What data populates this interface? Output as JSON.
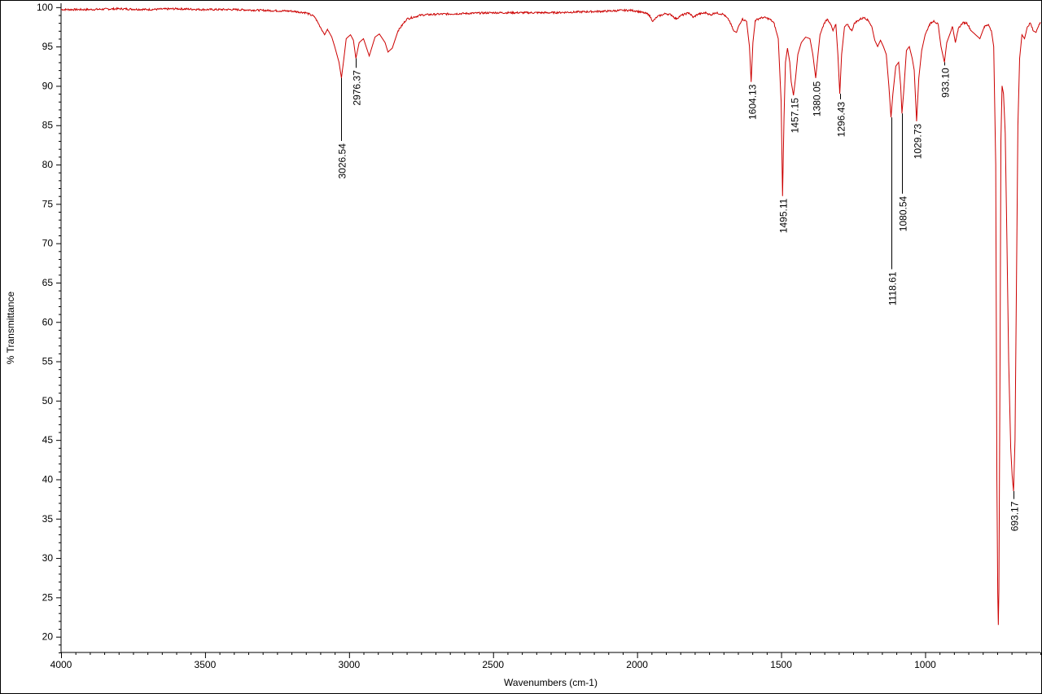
{
  "chart_data": {
    "type": "line",
    "xlabel": "Wavenumbers (cm-1)",
    "ylabel": "% Transmittance",
    "xlim": [
      4000,
      600
    ],
    "ylim": [
      18,
      100.5
    ],
    "x_ticks": [
      4000,
      3500,
      3000,
      2500,
      2000,
      1500,
      1000
    ],
    "y_ticks": [
      20,
      25,
      30,
      35,
      40,
      45,
      50,
      55,
      60,
      65,
      70,
      75,
      80,
      85,
      90,
      95,
      100
    ],
    "line_color": "#cc0000",
    "grid": false,
    "series": [
      {
        "points": [
          [
            4000,
            99.7
          ],
          [
            3900,
            99.7
          ],
          [
            3800,
            99.8
          ],
          [
            3700,
            99.7
          ],
          [
            3600,
            99.8
          ],
          [
            3500,
            99.7
          ],
          [
            3400,
            99.7
          ],
          [
            3300,
            99.6
          ],
          [
            3200,
            99.5
          ],
          [
            3150,
            99.3
          ],
          [
            3120,
            98.8
          ],
          [
            3100,
            97.5
          ],
          [
            3085,
            96.5
          ],
          [
            3075,
            97.2
          ],
          [
            3060,
            96.2
          ],
          [
            3050,
            95.0
          ],
          [
            3035,
            93.0
          ],
          [
            3026.54,
            91.0
          ],
          [
            3018,
            93.5
          ],
          [
            3010,
            96.0
          ],
          [
            2995,
            96.5
          ],
          [
            2985,
            95.8
          ],
          [
            2976.37,
            93.5
          ],
          [
            2965,
            95.5
          ],
          [
            2950,
            96.0
          ],
          [
            2930,
            93.8
          ],
          [
            2910,
            96.2
          ],
          [
            2895,
            96.6
          ],
          [
            2875,
            95.5
          ],
          [
            2865,
            94.3
          ],
          [
            2850,
            94.8
          ],
          [
            2830,
            97.0
          ],
          [
            2800,
            98.5
          ],
          [
            2750,
            99.0
          ],
          [
            2700,
            99.1
          ],
          [
            2600,
            99.2
          ],
          [
            2500,
            99.3
          ],
          [
            2400,
            99.3
          ],
          [
            2300,
            99.3
          ],
          [
            2200,
            99.4
          ],
          [
            2100,
            99.5
          ],
          [
            2050,
            99.6
          ],
          [
            2020,
            99.6
          ],
          [
            2000,
            99.5
          ],
          [
            1960,
            99.1
          ],
          [
            1945,
            98.2
          ],
          [
            1930,
            98.8
          ],
          [
            1900,
            99.2
          ],
          [
            1880,
            99.0
          ],
          [
            1865,
            98.5
          ],
          [
            1850,
            98.9
          ],
          [
            1820,
            99.3
          ],
          [
            1805,
            98.7
          ],
          [
            1790,
            99.1
          ],
          [
            1760,
            99.3
          ],
          [
            1745,
            99.0
          ],
          [
            1730,
            99.3
          ],
          [
            1700,
            99.1
          ],
          [
            1680,
            98.3
          ],
          [
            1665,
            97.0
          ],
          [
            1655,
            96.8
          ],
          [
            1645,
            97.8
          ],
          [
            1635,
            98.5
          ],
          [
            1620,
            98.2
          ],
          [
            1610,
            95.0
          ],
          [
            1604.13,
            90.5
          ],
          [
            1598,
            95.5
          ],
          [
            1590,
            98.3
          ],
          [
            1575,
            98.6
          ],
          [
            1560,
            98.7
          ],
          [
            1540,
            98.5
          ],
          [
            1525,
            98.0
          ],
          [
            1510,
            96.0
          ],
          [
            1500,
            88.0
          ],
          [
            1495.11,
            76.0
          ],
          [
            1490,
            86.0
          ],
          [
            1485,
            93.0
          ],
          [
            1478,
            94.8
          ],
          [
            1470,
            93.0
          ],
          [
            1465,
            90.5
          ],
          [
            1457.15,
            88.8
          ],
          [
            1450,
            91.0
          ],
          [
            1442,
            94.0
          ],
          [
            1430,
            95.5
          ],
          [
            1415,
            96.2
          ],
          [
            1400,
            96.0
          ],
          [
            1390,
            94.0
          ],
          [
            1380.05,
            91.0
          ],
          [
            1372,
            94.0
          ],
          [
            1365,
            96.5
          ],
          [
            1350,
            98.0
          ],
          [
            1340,
            98.5
          ],
          [
            1330,
            98.0
          ],
          [
            1320,
            97.0
          ],
          [
            1310,
            97.8
          ],
          [
            1303,
            94.0
          ],
          [
            1296.43,
            89.0
          ],
          [
            1290,
            94.0
          ],
          [
            1280,
            97.5
          ],
          [
            1270,
            97.8
          ],
          [
            1255,
            97.0
          ],
          [
            1245,
            98.0
          ],
          [
            1225,
            98.5
          ],
          [
            1210,
            98.7
          ],
          [
            1195,
            98.2
          ],
          [
            1185,
            97.5
          ],
          [
            1175,
            95.8
          ],
          [
            1165,
            95.0
          ],
          [
            1155,
            95.8
          ],
          [
            1145,
            95.0
          ],
          [
            1135,
            94.0
          ],
          [
            1126,
            90.0
          ],
          [
            1118.61,
            86.0
          ],
          [
            1112,
            89.0
          ],
          [
            1102,
            92.5
          ],
          [
            1092,
            93.0
          ],
          [
            1085,
            90.0
          ],
          [
            1080.54,
            86.5
          ],
          [
            1075,
            89.0
          ],
          [
            1065,
            94.5
          ],
          [
            1055,
            95.0
          ],
          [
            1045,
            93.5
          ],
          [
            1038,
            92.0
          ],
          [
            1029.73,
            85.5
          ],
          [
            1022,
            91.0
          ],
          [
            1012,
            94.5
          ],
          [
            1000,
            96.5
          ],
          [
            985,
            97.8
          ],
          [
            970,
            98.3
          ],
          [
            955,
            97.8
          ],
          [
            945,
            95.0
          ],
          [
            933.1,
            93.0
          ],
          [
            925,
            95.5
          ],
          [
            915,
            96.5
          ],
          [
            905,
            97.5
          ],
          [
            895,
            95.5
          ],
          [
            885,
            97.3
          ],
          [
            870,
            98.0
          ],
          [
            855,
            98.0
          ],
          [
            840,
            97.0
          ],
          [
            825,
            96.5
          ],
          [
            810,
            96.0
          ],
          [
            795,
            97.5
          ],
          [
            780,
            97.8
          ],
          [
            770,
            97.0
          ],
          [
            762,
            95.0
          ],
          [
            755,
            80.0
          ],
          [
            751,
            40.0
          ],
          [
            748,
            25.5
          ],
          [
            746,
            21.5
          ],
          [
            744,
            26.0
          ],
          [
            740,
            55.0
          ],
          [
            737,
            83.0
          ],
          [
            733,
            90.0
          ],
          [
            728,
            89.0
          ],
          [
            722,
            84.0
          ],
          [
            716,
            70.0
          ],
          [
            710,
            55.0
          ],
          [
            703,
            44.0
          ],
          [
            698,
            40.5
          ],
          [
            693.17,
            38.5
          ],
          [
            688,
            45.0
          ],
          [
            683,
            65.0
          ],
          [
            678,
            85.0
          ],
          [
            672,
            93.5
          ],
          [
            664,
            96.5
          ],
          [
            655,
            96.0
          ],
          [
            645,
            97.5
          ],
          [
            635,
            98.0
          ],
          [
            625,
            97.0
          ],
          [
            615,
            96.8
          ],
          [
            605,
            97.8
          ],
          [
            600,
            98.1
          ]
        ]
      }
    ],
    "annotations": [
      {
        "label": "3026.54",
        "x": 3026.54,
        "y": 91.0,
        "line_end_y": 83.0
      },
      {
        "label": "2976.37",
        "x": 2976.37,
        "y": 93.5,
        "line_end_y": 92.3
      },
      {
        "label": "1604.13",
        "x": 1604.13,
        "y": 90.5,
        "line_end_y": 90.5
      },
      {
        "label": "1495.11",
        "x": 1495.11,
        "y": 76.0,
        "line_end_y": 76.0
      },
      {
        "label": "1457.15",
        "x": 1457.15,
        "y": 88.8,
        "line_end_y": 88.8
      },
      {
        "label": "1380.05",
        "x": 1380.05,
        "y": 91.0,
        "line_end_y": 90.9
      },
      {
        "label": "1296.43",
        "x": 1296.43,
        "y": 89.0,
        "line_end_y": 88.3
      },
      {
        "label": "1118.61",
        "x": 1118.61,
        "y": 86.0,
        "line_end_y": 66.7
      },
      {
        "label": "1080.54",
        "x": 1080.54,
        "y": 86.5,
        "line_end_y": 76.3
      },
      {
        "label": "1029.73",
        "x": 1029.73,
        "y": 85.5,
        "line_end_y": 85.5
      },
      {
        "label": "933.10",
        "x": 933.1,
        "y": 93.0,
        "line_end_y": 92.6
      },
      {
        "label": "693.17",
        "x": 693.17,
        "y": 38.5,
        "line_end_y": 37.5
      }
    ]
  }
}
